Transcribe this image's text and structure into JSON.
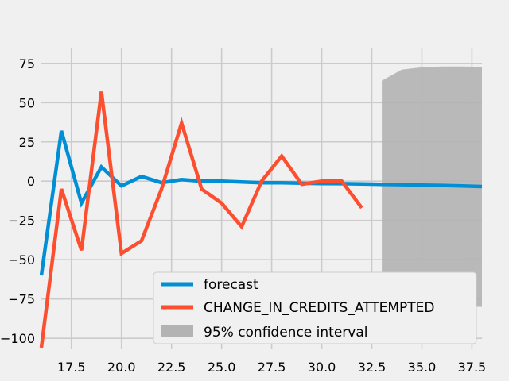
{
  "chart_data": {
    "type": "line",
    "xlim": [
      16.0,
      38.0
    ],
    "ylim": [
      -107,
      85
    ],
    "x_ticks": [
      17.5,
      20.0,
      22.5,
      25.0,
      27.5,
      30.0,
      32.5,
      35.0,
      37.5
    ],
    "x_tick_labels": [
      "17.5",
      "20.0",
      "22.5",
      "25.0",
      "27.5",
      "30.0",
      "32.5",
      "35.0",
      "37.5"
    ],
    "y_ticks": [
      75,
      50,
      25,
      0,
      -25,
      -50,
      -75,
      -100
    ],
    "y_tick_labels": [
      "75",
      "50",
      "25",
      "0",
      "−25",
      "−50",
      "−75",
      "−100"
    ],
    "grid": true,
    "legend_position": "lower-center",
    "series": [
      {
        "name": "forecast",
        "color": "#008fd5",
        "x": [
          16,
          17,
          18,
          19,
          20,
          21,
          22,
          23,
          24,
          25,
          26,
          27,
          28,
          29,
          30,
          31,
          32,
          33,
          34,
          35,
          36,
          37,
          38
        ],
        "y": [
          -60,
          32,
          -14,
          9,
          -3,
          3,
          -1,
          1,
          0,
          0,
          -0.5,
          -1,
          -1,
          -1.3,
          -1.5,
          -1.6,
          -1.8,
          -2,
          -2.2,
          -2.5,
          -2.7,
          -3,
          -3.4
        ]
      },
      {
        "name": "CHANGE_IN_CREDITS_ATTEMPTED",
        "color": "#fc4f30",
        "x": [
          16,
          17,
          18,
          19,
          20,
          21,
          22,
          23,
          24,
          25,
          26,
          27,
          28,
          29,
          30,
          31,
          32
        ],
        "y": [
          -106,
          -5,
          -44,
          57,
          -46,
          -38,
          -5,
          37,
          -5,
          -14,
          -29,
          0,
          16,
          -2,
          0,
          0,
          -17
        ]
      }
    ],
    "confidence_band": {
      "name": "95% confidence interval",
      "color": "#b3b3b3",
      "x": [
        33,
        34,
        35,
        36,
        37,
        38
      ],
      "upper": [
        64,
        71,
        72.5,
        73,
        73,
        72.8
      ],
      "lower": [
        -69,
        -77,
        -78.5,
        -79,
        -79.5,
        -80
      ]
    }
  }
}
